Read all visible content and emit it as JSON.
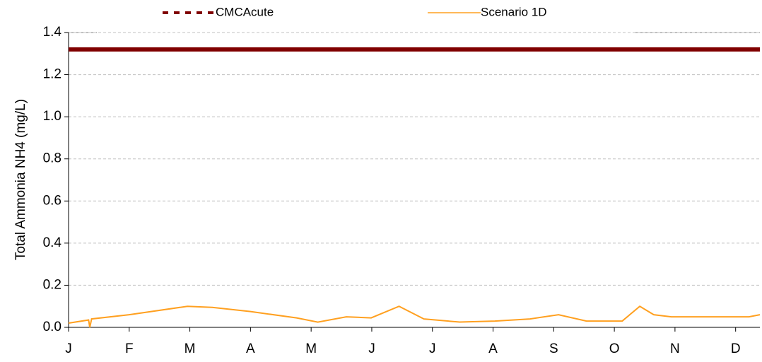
{
  "chart_data": {
    "type": "line",
    "ylabel": "Total Ammonia NH4 (mg/L)",
    "xlim": [
      0,
      11.4
    ],
    "xticks": [
      {
        "value": 0,
        "label": "J"
      },
      {
        "value": 1,
        "label": "F"
      },
      {
        "value": 2,
        "label": "M"
      },
      {
        "value": 3,
        "label": "A"
      },
      {
        "value": 4,
        "label": "M"
      },
      {
        "value": 5,
        "label": "J"
      },
      {
        "value": 6,
        "label": "J"
      },
      {
        "value": 7,
        "label": "A"
      },
      {
        "value": 8,
        "label": "S"
      },
      {
        "value": 9,
        "label": "O"
      },
      {
        "value": 10,
        "label": "N"
      },
      {
        "value": 11,
        "label": "D"
      }
    ],
    "ylim": [
      0,
      1.4
    ],
    "yticks": [
      {
        "value": 0,
        "label": "0.0"
      },
      0.2,
      0.4,
      0.6,
      0.8,
      {
        "value": 1,
        "label": "1.0"
      },
      1.2,
      1.4
    ],
    "grid": true,
    "series": [
      {
        "name": "CMCAcute",
        "color": "#800000",
        "style": "dashed",
        "x": [
          0,
          11.4
        ],
        "values": [
          1.32,
          1.32
        ]
      },
      {
        "name": "Scenario 1D",
        "color": "#ffa020",
        "style": "solid",
        "x": [
          0,
          0.33,
          0.35,
          0.38,
          1.0,
          1.96,
          2.37,
          3.0,
          3.76,
          4.11,
          4.58,
          4.99,
          5.45,
          5.86,
          6.45,
          7.03,
          7.61,
          8.08,
          8.54,
          9.13,
          9.42,
          9.65,
          9.94,
          11.22,
          11.4
        ],
        "values": [
          0.02,
          0.035,
          0.0,
          0.04,
          0.06,
          0.1,
          0.095,
          0.075,
          0.045,
          0.025,
          0.05,
          0.045,
          0.1,
          0.04,
          0.025,
          0.03,
          0.04,
          0.06,
          0.03,
          0.03,
          0.1,
          0.06,
          0.05,
          0.05,
          0.06
        ]
      }
    ]
  }
}
